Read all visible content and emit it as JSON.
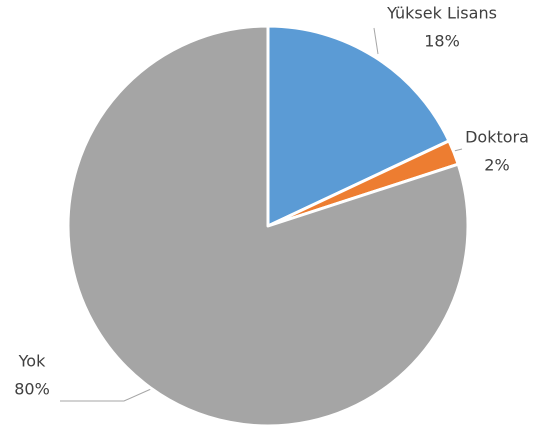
{
  "chart_data": {
    "type": "pie",
    "categories": [
      "Yüksek Lisans",
      "Doktora",
      "Yok"
    ],
    "values": [
      18,
      2,
      80
    ],
    "value_labels": [
      "18%",
      "2%",
      "80%"
    ],
    "colors": [
      "#5b9bd5",
      "#ed7d31",
      "#a5a5a5"
    ]
  }
}
